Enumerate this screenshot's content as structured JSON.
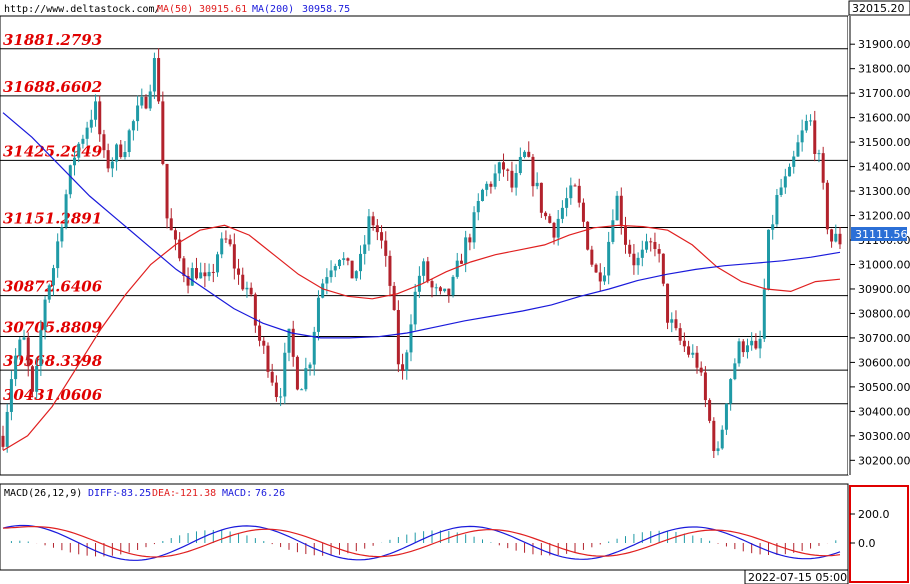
{
  "header": {
    "site": "http://www.deltastock.com/",
    "ma50_label": "MA(50)",
    "ma50_value": "30915.61",
    "ma200_label": "MA(200)",
    "ma200_value": "30958.75",
    "top_price": "32015.20"
  },
  "macd": {
    "label": "MACD(26,12,9)",
    "diff_label": "DIFF:",
    "diff_value": "-83.25",
    "dea_label": "DEA:",
    "dea_value": "-121.38",
    "macd_label": "MACD:",
    "macd_value": "76.26",
    "ticks": [
      "200.0",
      "0.0"
    ]
  },
  "timestamp": "2022-07-15 05:00",
  "current_price": "31111.56",
  "colors": {
    "bull": "#1f9aa6",
    "bear": "#b2222c",
    "ma50": "#e02020",
    "ma200": "#1a1adb",
    "level_text": "#e00000",
    "price_badge": "#2b6fd6",
    "macd_box": "#e00000"
  },
  "chart_data": {
    "type": "candlestick",
    "y_ticks": [
      30200,
      30300,
      30400,
      30500,
      30600,
      30700,
      30800,
      30900,
      31000,
      31100,
      31200,
      31300,
      31400,
      31500,
      31600,
      31700,
      31800,
      31900
    ],
    "ylim": [
      30140,
      32015.2
    ],
    "levels": [
      "31881.2793",
      "31688.6602",
      "31425.2949",
      "31151.2891",
      "30872.6406",
      "30705.8809",
      "30568.3398",
      "30431.0606"
    ],
    "close_path": [
      30300,
      30600,
      30700,
      30420,
      30850,
      31000,
      31250,
      31450,
      31550,
      31650,
      31400,
      31450,
      31500,
      31600,
      31680,
      31850,
      31200,
      31050,
      30950,
      30980,
      30900,
      31050,
      31100,
      30950,
      30900,
      30700,
      30600,
      30450,
      30700,
      30500,
      30600,
      30900,
      31000,
      31050,
      30950,
      31000,
      31200,
      31100,
      30900,
      30500,
      30800,
      31000,
      30900,
      30850,
      30900,
      31050,
      31150,
      31300,
      31350,
      31400,
      31300,
      31450,
      31350,
      31200,
      31150,
      31250,
      31300,
      31150,
      30950,
      31000,
      31300,
      31100,
      31000,
      31050,
      31100,
      30800,
      30700,
      30650,
      30600,
      30400,
      30200,
      30500,
      30650,
      30700,
      30600,
      31100,
      31300,
      31350,
      31500,
      31600,
      31400,
      31100,
      31100
    ],
    "ma50_path": [
      30240,
      30300,
      30420,
      30580,
      30740,
      30880,
      31000,
      31080,
      31140,
      31160,
      31120,
      31040,
      30960,
      30900,
      30870,
      30860,
      30880,
      30920,
      30970,
      31010,
      31040,
      31060,
      31080,
      31120,
      31150,
      31160,
      31155,
      31140,
      31080,
      30990,
      30930,
      30900,
      30890,
      30930,
      30940
    ],
    "ma200_path": [
      31620,
      31520,
      31400,
      31280,
      31180,
      31080,
      30980,
      30900,
      30820,
      30760,
      30720,
      30700,
      30700,
      30705,
      30720,
      30745,
      30770,
      30790,
      30810,
      30835,
      30870,
      30900,
      30935,
      30960,
      30980,
      30995,
      31005,
      31015,
      31030,
      31050
    ],
    "macd_ticks": [
      200,
      0
    ]
  }
}
